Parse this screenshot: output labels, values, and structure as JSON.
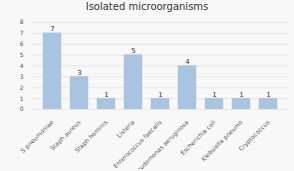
{
  "chart_data": {
    "type": "bar",
    "title": "Isolated microorganisms",
    "categories": [
      "S pneumoniae",
      "Staph aureus",
      "Staph hominis",
      "Listeria",
      "Enterococcus faecalis",
      "Pseudomonas aeruginosa",
      "Escherichia coli",
      "Klebsiella pneumo",
      "Cryptococcus"
    ],
    "values": [
      7,
      3,
      1,
      5,
      1,
      4,
      1,
      1,
      1
    ],
    "color": "#a8c4e0",
    "ylim": [
      0,
      8
    ],
    "yticks": [
      0,
      1,
      2,
      3,
      4,
      5,
      6,
      7,
      8
    ],
    "grid": true,
    "data_labels": true
  }
}
